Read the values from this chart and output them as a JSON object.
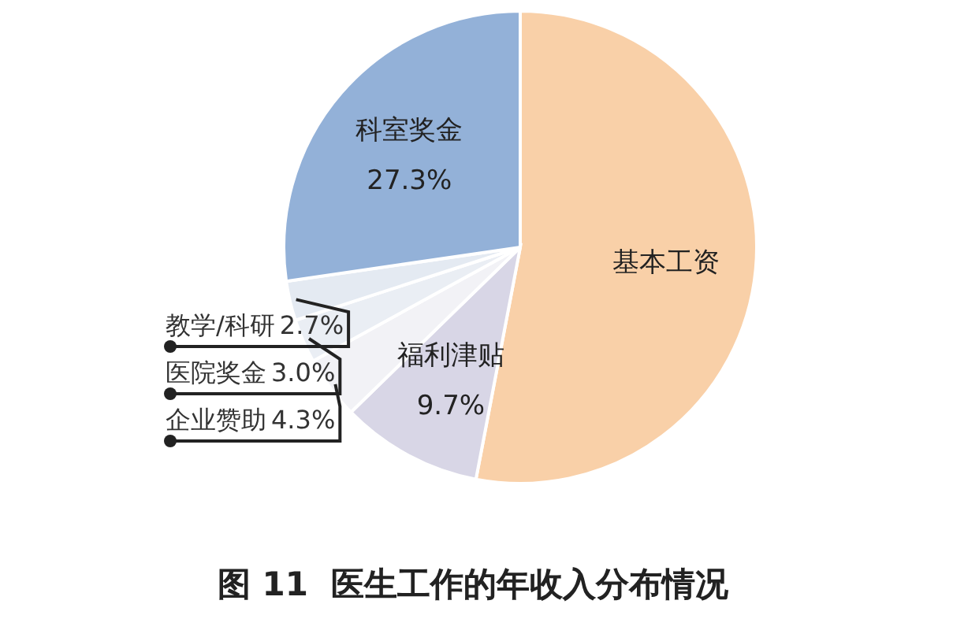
{
  "chart_data": {
    "type": "pie",
    "title": "图 11  医生工作的年收入分布情况",
    "categories": [
      "基本工资",
      "福利津贴",
      "企业赞助",
      "医院奖金",
      "教学/科研",
      "科室奖金"
    ],
    "values": [
      53.0,
      9.7,
      4.3,
      3.0,
      2.7,
      27.3
    ],
    "colors": [
      "#f9d0a8",
      "#d8d6e6",
      "#f2f2f6",
      "#eaeef4",
      "#e4eaf2",
      "#93b1d8"
    ],
    "value_labels": [
      null,
      "9.7%",
      "4.3%",
      "3.0%",
      "2.7%",
      "27.3%"
    ]
  }
}
